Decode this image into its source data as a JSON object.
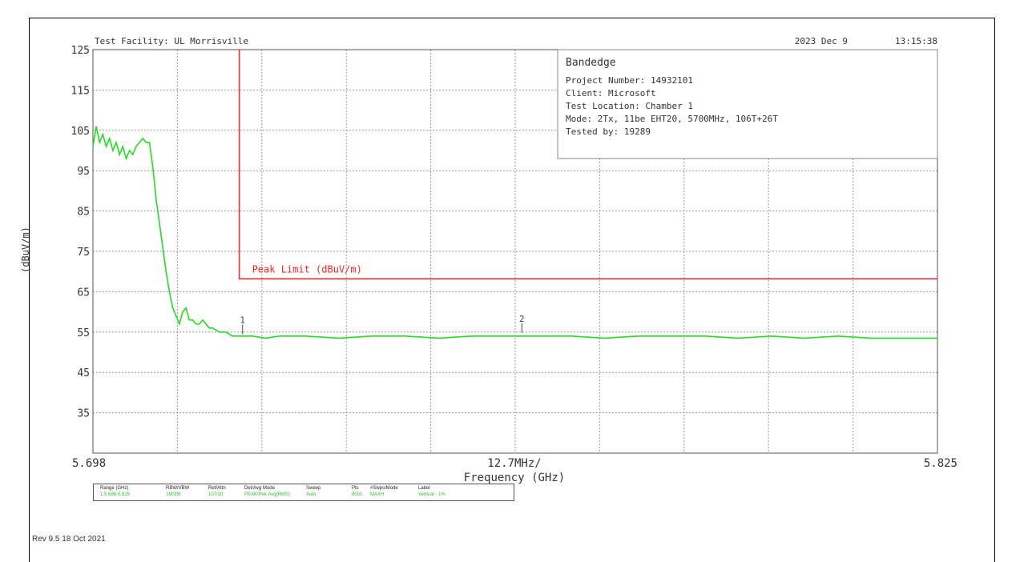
{
  "header": {
    "facility": "Test Facility:  UL Morrisville",
    "date": "2023 Dec 9",
    "time": "13:15:38"
  },
  "info_box": {
    "title": "Bandedge",
    "lines": [
      "Project Number: 14932101",
      "Client: Microsoft",
      "Test Location: Chamber 1",
      "Mode: 2Tx, 11be EHT20, 5700MHz, 106T+26T",
      "Tested by: 19289"
    ]
  },
  "colors": {
    "trace": "#22dd22",
    "limit": "#ff2020",
    "grid": "#999999",
    "axis_text": "#333333"
  },
  "chart_data": {
    "type": "line",
    "title": "",
    "xlabel": "Frequency (GHz)",
    "ylabel": "(dBuV/m)",
    "x_start_label": "5.698",
    "x_center_label": "12.7MHz/",
    "x_end_label": "5.825",
    "xlim": [
      5.698,
      5.825
    ],
    "ylim": [
      25,
      125
    ],
    "y_ticks": [
      125,
      115,
      105,
      95,
      85,
      75,
      65,
      55,
      45,
      35
    ],
    "grid": true,
    "series": [
      {
        "name": "",
        "x": [
          5.698,
          5.6985,
          5.699,
          5.6995,
          5.7,
          5.7005,
          5.701,
          5.7015,
          5.702,
          5.7025,
          5.703,
          5.7035,
          5.704,
          5.7045,
          5.705,
          5.7055,
          5.706,
          5.7065,
          5.707,
          5.7075,
          5.708,
          5.7085,
          5.709,
          5.7095,
          5.71,
          5.7105,
          5.711,
          5.7115,
          5.712,
          5.7125,
          5.713,
          5.7135,
          5.714,
          5.7145,
          5.715,
          5.7155,
          5.716,
          5.717,
          5.718,
          5.719,
          5.72,
          5.721,
          5.722,
          5.724,
          5.726,
          5.73,
          5.735,
          5.74,
          5.745,
          5.75,
          5.755,
          5.76,
          5.765,
          5.77,
          5.775,
          5.78,
          5.785,
          5.79,
          5.795,
          5.8,
          5.805,
          5.81,
          5.815,
          5.82,
          5.825
        ],
        "y": [
          101,
          106,
          102,
          104,
          101,
          103,
          100,
          102,
          99,
          101,
          98,
          100,
          99,
          101,
          102,
          103,
          102,
          102,
          96,
          88,
          82,
          76,
          70,
          65,
          61,
          59,
          57,
          60,
          61,
          58,
          58,
          57,
          57,
          58,
          57,
          56,
          56,
          55,
          55,
          54,
          54,
          54,
          54,
          53.5,
          54,
          54,
          53.5,
          54,
          54,
          53.5,
          54,
          54,
          54,
          54,
          53.5,
          54,
          54,
          54,
          53.5,
          54,
          53.5,
          54,
          53.5,
          53.5,
          53.5
        ]
      }
    ],
    "limit_line": {
      "label": "Peak Limit (dBuV/m)",
      "x_start": 5.72,
      "y": 68.2
    },
    "markers": [
      {
        "label": "1",
        "x": 5.7205,
        "y": 54.5
      },
      {
        "label": "2",
        "x": 5.7625,
        "y": 54.8
      }
    ],
    "annotations": [
      "Bandedge"
    ]
  },
  "settings_table": {
    "headers": [
      "Range (GHz)",
      "RBW/VBW",
      "Ref/Attn",
      "Det/Avg Mode",
      "Sweep",
      "Pts",
      "#Swps/Mode",
      "Label"
    ],
    "values": [
      "1:5.698-5.825",
      "1M/3M",
      "107/10",
      "PEAK/Pwr Avg(RMS)",
      "Auto",
      "8001",
      "MAXH",
      "Vertical - 1%"
    ]
  },
  "footer": {
    "revision": "Rev 9.5 18 Oct 2021"
  }
}
